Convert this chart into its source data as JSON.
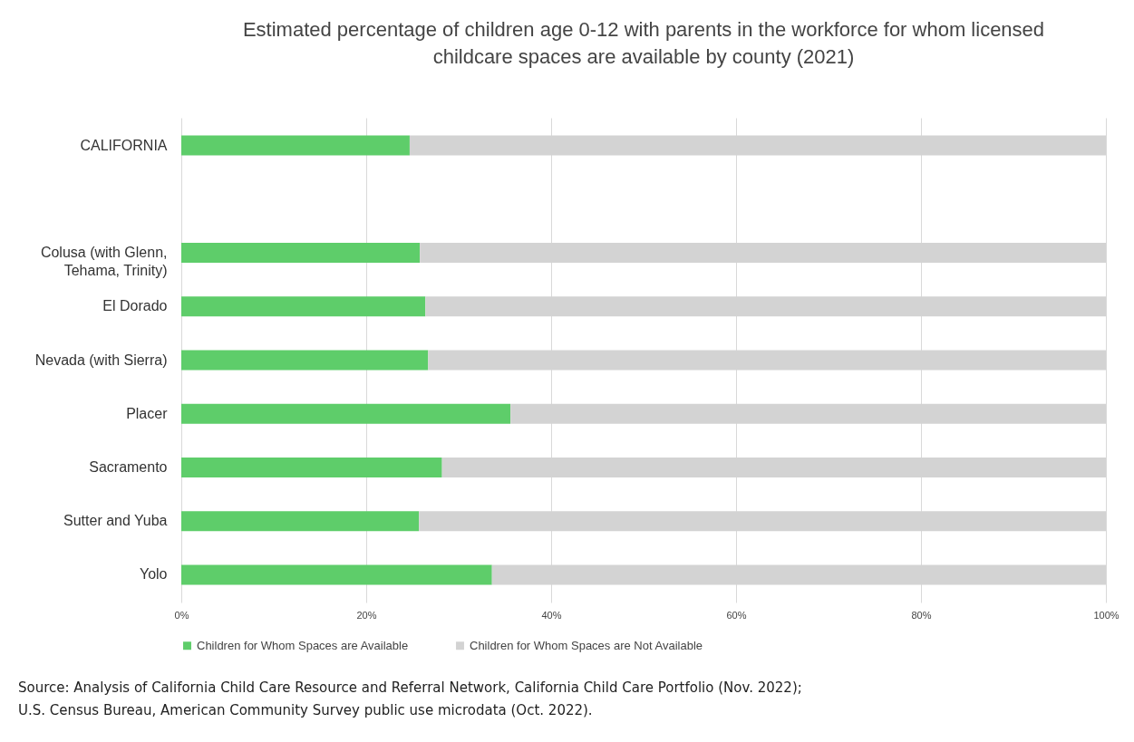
{
  "chart_data": {
    "type": "bar",
    "orientation": "horizontal",
    "stacked": true,
    "title": "Estimated percentage of children age 0-12 with parents in the workforce for whom licensed childcare spaces are available by county (2021)",
    "categories": [
      "CALIFORNIA",
      null,
      "Colusa (with Glenn, Tehama, Trinity)",
      "El Dorado",
      "Nevada (with Sierra)",
      "Placer",
      "Sacramento",
      "Sutter and Yuba",
      "Yolo"
    ],
    "series": [
      {
        "name": "Children for Whom Spaces are Available",
        "color": "#5ecd6a",
        "values": [
          24.7,
          null,
          25.8,
          26.4,
          26.7,
          35.6,
          28.2,
          25.7,
          33.6
        ]
      },
      {
        "name": "Children for Whom Spaces are Not Available",
        "color": "#d3d3d3",
        "values": [
          75.3,
          null,
          74.2,
          73.6,
          73.3,
          64.4,
          71.8,
          74.3,
          66.4
        ]
      }
    ],
    "xlim": [
      0,
      100
    ],
    "xticks": [
      {
        "value": 0,
        "label": "0%"
      },
      {
        "value": 20,
        "label": "20%"
      },
      {
        "value": 40,
        "label": "40%"
      },
      {
        "value": 60,
        "label": "60%"
      },
      {
        "value": 80,
        "label": "80%"
      },
      {
        "value": 100,
        "label": "100%"
      }
    ],
    "grid": "x",
    "legend": "bottom",
    "annotations": [
      "Source: Analysis of California Child Care Resource and Referral Network, California Child Care Portfolio (Nov. 2022);",
      "U.S. Census Bureau, American Community Survey public use microdata (Oct. 2022)."
    ]
  }
}
